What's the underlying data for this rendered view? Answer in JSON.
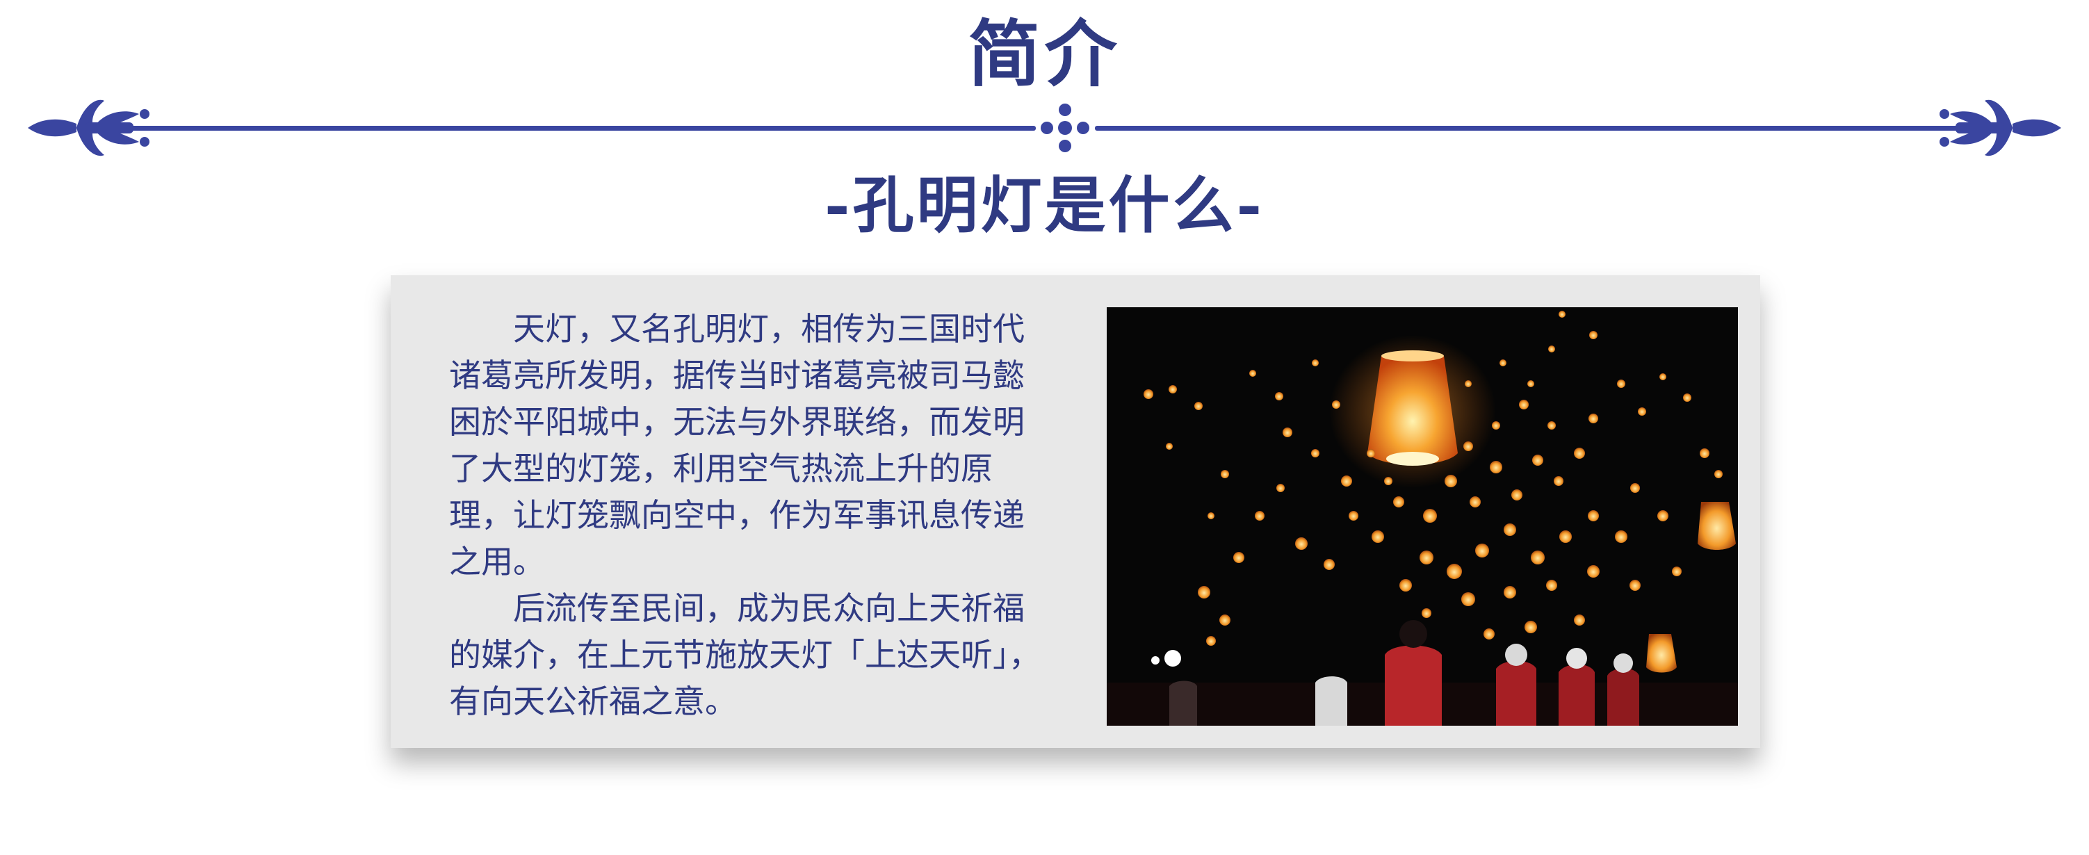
{
  "page": {
    "title": "简介",
    "subtitle": "-孔明灯是什么-"
  },
  "content": {
    "paragraphs": [
      "天灯，又名孔明灯，相传为三国时代诸葛亮所发明，据传当时诸葛亮被司马懿困於平阳城中，无法与外界联络，而发明了大型的灯笼，利用空气热流上升的原理，让灯笼飘向空中，作为军事讯息传递之用。",
      "后流传至民间，成为民众向上天祈福的媒介，在上元节施放天灯「上达天听」，有向天公祈福之意。"
    ]
  },
  "photo": {
    "icon": "sky-lanterns-photo"
  },
  "colors": {
    "accent": "#2f3a82",
    "card_bg": "#e8e8e8",
    "lantern_glow": "#f5a030"
  }
}
